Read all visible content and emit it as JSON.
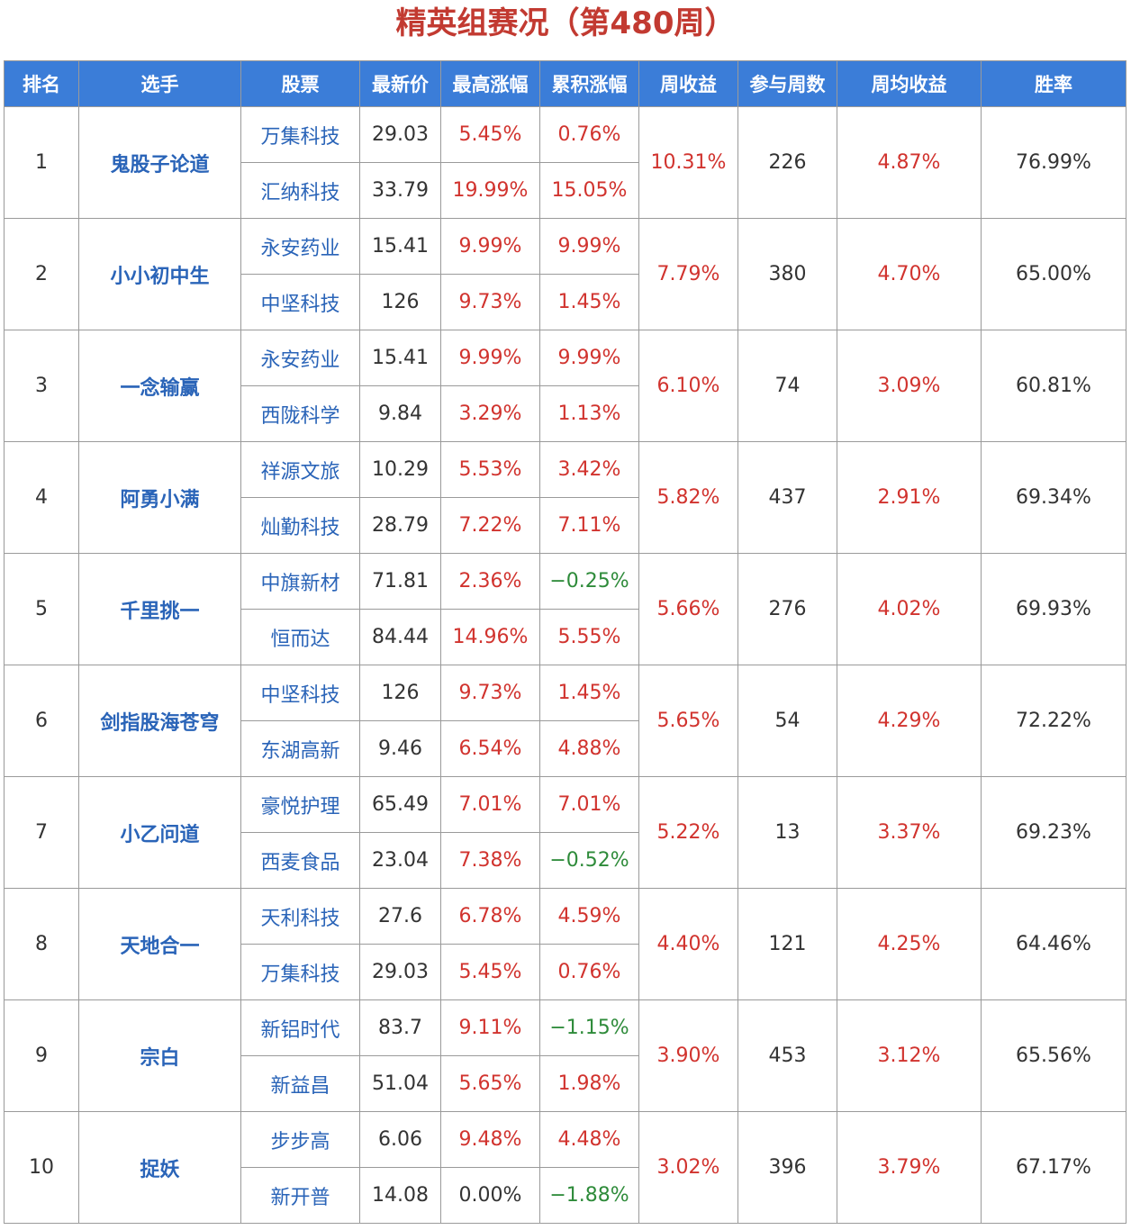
{
  "title": "精英组赛况（第480周）",
  "headers": [
    "排名",
    "选手",
    "股票",
    "最新价",
    "最高涨幅",
    "累积涨幅",
    "周收益",
    "参与周数",
    "周均收益",
    "胜率"
  ],
  "rows": [
    {
      "rank": "1",
      "player": "鬼股子论道",
      "weekly_return": "10.31%",
      "weeks": "226",
      "avg_return": "4.87%",
      "win_rate": "76.99%",
      "stocks": [
        {
          "name": "万集科技",
          "price": "29.03",
          "max_gain": "5.45%",
          "max_dir": "red",
          "cum_gain": "0.76%",
          "cum_dir": "red"
        },
        {
          "name": "汇纳科技",
          "price": "33.79",
          "max_gain": "19.99%",
          "max_dir": "red",
          "cum_gain": "15.05%",
          "cum_dir": "red"
        }
      ]
    },
    {
      "rank": "2",
      "player": "小小初中生",
      "weekly_return": "7.79%",
      "weeks": "380",
      "avg_return": "4.70%",
      "win_rate": "65.00%",
      "stocks": [
        {
          "name": "永安药业",
          "price": "15.41",
          "max_gain": "9.99%",
          "max_dir": "red",
          "cum_gain": "9.99%",
          "cum_dir": "red"
        },
        {
          "name": "中坚科技",
          "price": "126",
          "max_gain": "9.73%",
          "max_dir": "red",
          "cum_gain": "1.45%",
          "cum_dir": "red"
        }
      ]
    },
    {
      "rank": "3",
      "player": "一念输赢",
      "weekly_return": "6.10%",
      "weeks": "74",
      "avg_return": "3.09%",
      "win_rate": "60.81%",
      "stocks": [
        {
          "name": "永安药业",
          "price": "15.41",
          "max_gain": "9.99%",
          "max_dir": "red",
          "cum_gain": "9.99%",
          "cum_dir": "red"
        },
        {
          "name": "西陇科学",
          "price": "9.84",
          "max_gain": "3.29%",
          "max_dir": "red",
          "cum_gain": "1.13%",
          "cum_dir": "red"
        }
      ]
    },
    {
      "rank": "4",
      "player": "阿勇小满",
      "weekly_return": "5.82%",
      "weeks": "437",
      "avg_return": "2.91%",
      "win_rate": "69.34%",
      "stocks": [
        {
          "name": "祥源文旅",
          "price": "10.29",
          "max_gain": "5.53%",
          "max_dir": "red",
          "cum_gain": "3.42%",
          "cum_dir": "red"
        },
        {
          "name": "灿勤科技",
          "price": "28.79",
          "max_gain": "7.22%",
          "max_dir": "red",
          "cum_gain": "7.11%",
          "cum_dir": "red"
        }
      ]
    },
    {
      "rank": "5",
      "player": "千里挑一",
      "weekly_return": "5.66%",
      "weeks": "276",
      "avg_return": "4.02%",
      "win_rate": "69.93%",
      "stocks": [
        {
          "name": "中旗新材",
          "price": "71.81",
          "max_gain": "2.36%",
          "max_dir": "red",
          "cum_gain": "−0.25%",
          "cum_dir": "green"
        },
        {
          "name": "恒而达",
          "price": "84.44",
          "max_gain": "14.96%",
          "max_dir": "red",
          "cum_gain": "5.55%",
          "cum_dir": "red"
        }
      ]
    },
    {
      "rank": "6",
      "player": "剑指股海苍穹",
      "weekly_return": "5.65%",
      "weeks": "54",
      "avg_return": "4.29%",
      "win_rate": "72.22%",
      "stocks": [
        {
          "name": "中坚科技",
          "price": "126",
          "max_gain": "9.73%",
          "max_dir": "red",
          "cum_gain": "1.45%",
          "cum_dir": "red"
        },
        {
          "name": "东湖高新",
          "price": "9.46",
          "max_gain": "6.54%",
          "max_dir": "red",
          "cum_gain": "4.88%",
          "cum_dir": "red"
        }
      ]
    },
    {
      "rank": "7",
      "player": "小乙问道",
      "weekly_return": "5.22%",
      "weeks": "13",
      "avg_return": "3.37%",
      "win_rate": "69.23%",
      "stocks": [
        {
          "name": "豪悦护理",
          "price": "65.49",
          "max_gain": "7.01%",
          "max_dir": "red",
          "cum_gain": "7.01%",
          "cum_dir": "red"
        },
        {
          "name": "西麦食品",
          "price": "23.04",
          "max_gain": "7.38%",
          "max_dir": "red",
          "cum_gain": "−0.52%",
          "cum_dir": "green"
        }
      ]
    },
    {
      "rank": "8",
      "player": "天地合一",
      "weekly_return": "4.40%",
      "weeks": "121",
      "avg_return": "4.25%",
      "win_rate": "64.46%",
      "stocks": [
        {
          "name": "天利科技",
          "price": "27.6",
          "max_gain": "6.78%",
          "max_dir": "red",
          "cum_gain": "4.59%",
          "cum_dir": "red"
        },
        {
          "name": "万集科技",
          "price": "29.03",
          "max_gain": "5.45%",
          "max_dir": "red",
          "cum_gain": "0.76%",
          "cum_dir": "red"
        }
      ]
    },
    {
      "rank": "9",
      "player": "宗白",
      "weekly_return": "3.90%",
      "weeks": "453",
      "avg_return": "3.12%",
      "win_rate": "65.56%",
      "stocks": [
        {
          "name": "新铝时代",
          "price": "83.7",
          "max_gain": "9.11%",
          "max_dir": "red",
          "cum_gain": "−1.15%",
          "cum_dir": "green"
        },
        {
          "name": "新益昌",
          "price": "51.04",
          "max_gain": "5.65%",
          "max_dir": "red",
          "cum_gain": "1.98%",
          "cum_dir": "red"
        }
      ]
    },
    {
      "rank": "10",
      "player": "捉妖",
      "weekly_return": "3.02%",
      "weeks": "396",
      "avg_return": "3.79%",
      "win_rate": "67.17%",
      "stocks": [
        {
          "name": "步步高",
          "price": "6.06",
          "max_gain": "9.48%",
          "max_dir": "red",
          "cum_gain": "4.48%",
          "cum_dir": "red"
        },
        {
          "name": "新开普",
          "price": "14.08",
          "max_gain": "0.00%",
          "max_dir": "plain",
          "cum_gain": "−1.88%",
          "cum_dir": "green"
        }
      ]
    }
  ]
}
